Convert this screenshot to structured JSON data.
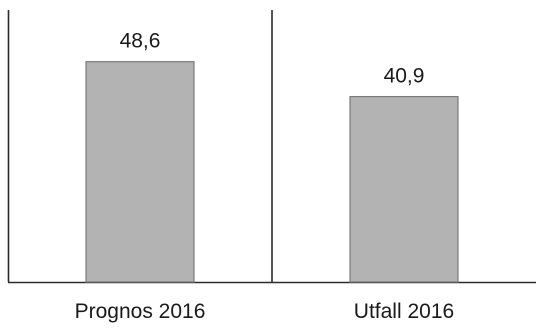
{
  "chart_data": {
    "type": "bar",
    "categories": [
      "Prognos 2016",
      "Utfall 2016"
    ],
    "values": [
      48.6,
      40.9
    ],
    "value_labels": [
      "48,6",
      "40,9"
    ],
    "title": "",
    "xlabel": "",
    "ylabel": "",
    "ylim": [
      0,
      60
    ],
    "grid": false,
    "legend": "none",
    "colors": {
      "bar_fill": "#b3b3b3",
      "bar_stroke": "#7a7a7a",
      "axis": "#2b2b2b",
      "text": "#1a1a1a"
    }
  }
}
